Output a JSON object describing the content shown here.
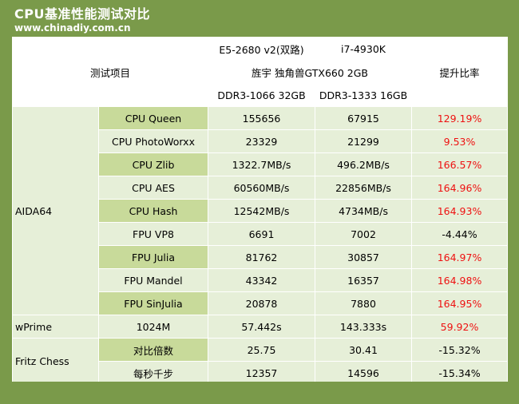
{
  "header": {
    "title": "CPU基准性能测试对比",
    "url": "www.chinadiy.com.cn"
  },
  "table": {
    "test_item_label": "测试项目",
    "cpu_a": "E5-2680 v2(双路)",
    "cpu_b": "i7-4930K",
    "gpu": "旌宇 独角兽GTX660 2GB",
    "mem_a": "DDR3-1066 32GB",
    "mem_b": "DDR3-1333 16GB",
    "ratio_label": "提升比率",
    "group_aida": "AIDA64",
    "group_wprime": "wPrime",
    "group_fritz": "Fritz Chess",
    "rows": [
      {
        "name": "CPU Queen",
        "a": "155656",
        "b": "67915",
        "r": "129.19%"
      },
      {
        "name": "CPU PhotoWorxx",
        "a": "23329",
        "b": "21299",
        "r": "9.53%"
      },
      {
        "name": "CPU Zlib",
        "a": "1322.7MB/s",
        "b": "496.2MB/s",
        "r": "166.57%"
      },
      {
        "name": "CPU AES",
        "a": "60560MB/s",
        "b": "22856MB/s",
        "r": "164.96%"
      },
      {
        "name": "CPU Hash",
        "a": "12542MB/s",
        "b": "4734MB/s",
        "r": "164.93%"
      },
      {
        "name": "FPU VP8",
        "a": "6691",
        "b": "7002",
        "r": "-4.44%"
      },
      {
        "name": "FPU Julia",
        "a": "81762",
        "b": "30857",
        "r": "164.97%"
      },
      {
        "name": "FPU Mandel",
        "a": "43342",
        "b": "16357",
        "r": "164.98%"
      },
      {
        "name": "FPU SinJulia",
        "a": "20878",
        "b": "7880",
        "r": "164.95%"
      },
      {
        "name": "1024M",
        "a": "57.442s",
        "b": "143.333s",
        "r": "59.92%"
      },
      {
        "name": "对比倍数",
        "a": "25.75",
        "b": "30.41",
        "r": "-15.32%"
      },
      {
        "name": "每秒千步",
        "a": "12357",
        "b": "14596",
        "r": "-15.34%"
      }
    ]
  }
}
